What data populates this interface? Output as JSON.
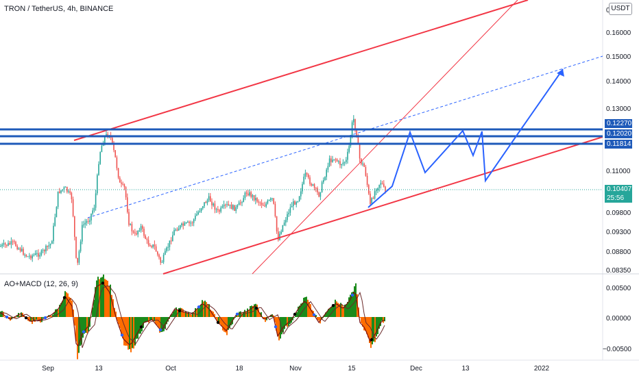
{
  "header": {
    "symbol": "TRON / TetherUS, 4h, BINANCE",
    "currency_button": "USDT"
  },
  "indicator": {
    "title": "AO+MACD (12, 26, 9)"
  },
  "price_axis": {
    "ticks": [
      "0.16000",
      "0.15000",
      "0.14000",
      "0.13000",
      "0.11000",
      "0.09800",
      "0.09300",
      "0.08800",
      "0.08350"
    ],
    "top_partial": "0"
  },
  "indicator_axis": {
    "ticks": [
      "0.00500",
      "0.00000",
      "−0.00500"
    ]
  },
  "time_axis": {
    "ticks": [
      "Sep",
      "13",
      "Oct",
      "18",
      "Nov",
      "15",
      "Dec",
      "13",
      "2022"
    ]
  },
  "price_tags": {
    "level1": "0.12270",
    "level2": "0.12020",
    "level3": "0.11814",
    "last_price": "0.10407",
    "countdown": "25:56"
  },
  "colors": {
    "red_line": "#f23645",
    "blue_line": "#1e5ab9",
    "projection": "#2962ff",
    "candle_up": "#26a69a",
    "candle_down": "#ef5350",
    "hist_green": "#1b8a1b",
    "hist_orange": "#ff6d00",
    "macd_line": "#7b1010",
    "signal_line": "#6b2a2a"
  }
}
